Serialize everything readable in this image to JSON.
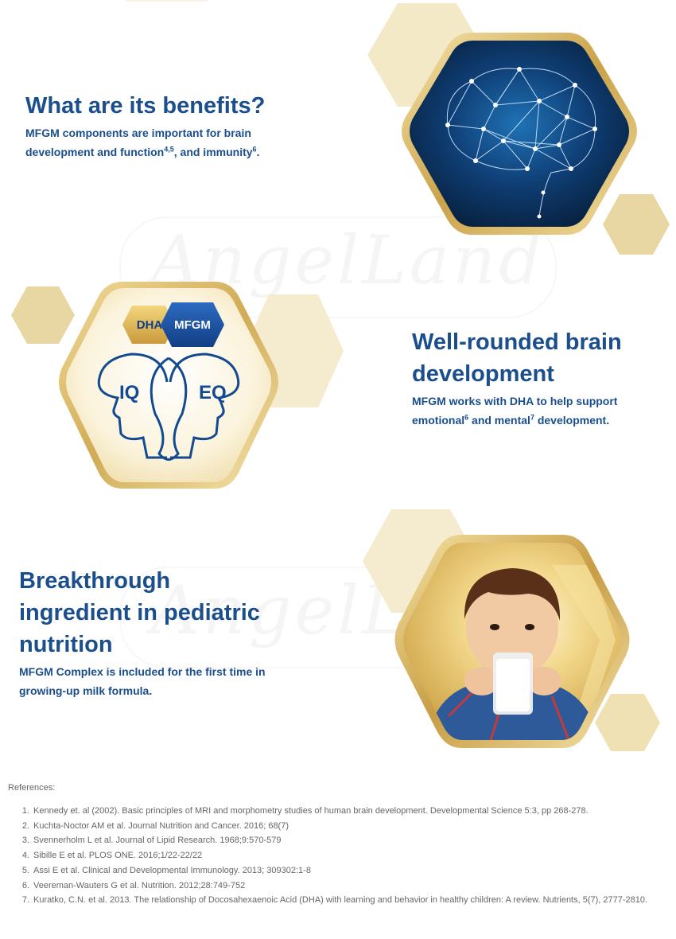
{
  "section1": {
    "heading": "What are its benefits?",
    "body_line1": "MFGM components are important for brain",
    "body_line2_a": "development and function",
    "body_line2_sup1": "4,5",
    "body_line2_b": ", and immunity",
    "body_line2_sup2": "6",
    "body_line2_c": "."
  },
  "section2": {
    "heading_line1": "Well-rounded brain",
    "heading_line2": "development",
    "body_line1": "MFGM works with DHA to help support",
    "body_line2_a": "emotional",
    "body_line2_sup1": "6",
    "body_line2_b": " and mental",
    "body_line2_sup2": "7",
    "body_line2_c": " development.",
    "badge_dha": "DHA",
    "badge_mfgm": "MFGM",
    "label_iq": "IQ",
    "label_eq": "EQ"
  },
  "section3": {
    "heading_line1": "Breakthrough",
    "heading_line2": "ingredient in pediatric",
    "heading_line3": "nutrition",
    "body_line1": "MFGM Complex is included for the first time in",
    "body_line2": "growing-up milk formula."
  },
  "watermark": {
    "text": "AngelLand"
  },
  "references": {
    "title": "References:",
    "items": [
      {
        "num": "1.",
        "text": "Kennedy et. al (2002). Basic principles of MRI and morphometry studies of human brain development. Developmental Science 5:3, pp 268-278."
      },
      {
        "num": "2.",
        "text": "Kuchta-Noctor AM et al. Journal Nutrition and Cancer. 2016; 68(7)"
      },
      {
        "num": "3.",
        "text": "Svennerholm L et al. Journal of Lipid Research. 1968;9:570-579"
      },
      {
        "num": "4.",
        "text": "Sibille E et al. PLOS ONE. 2016;1/22-22/22"
      },
      {
        "num": "5.",
        "text": "Assi E et al. Clinical and Developmental Immunology. 2013; 309302:1-8"
      },
      {
        "num": "6.",
        "text": "Veereman-Wauters G et al. Nutrition. 2012;28:749-752"
      },
      {
        "num": "7.",
        "text": "Kuratko, C.N. et al. 2013. The relationship of Docosahexaenoic Acid (DHA) with learning and behavior in healthy children: A review. Nutrients, 5(7), 2777-2810."
      }
    ]
  },
  "colors": {
    "heading_blue": "#1a4e8c",
    "gold": "#d9b863",
    "gold_light": "#efe1b4",
    "text_grey": "#666666"
  },
  "icons": [
    "brain-network-icon",
    "iq-eq-heads-icon",
    "child-drinking-milk-icon",
    "hexagon-decoration-icon"
  ]
}
